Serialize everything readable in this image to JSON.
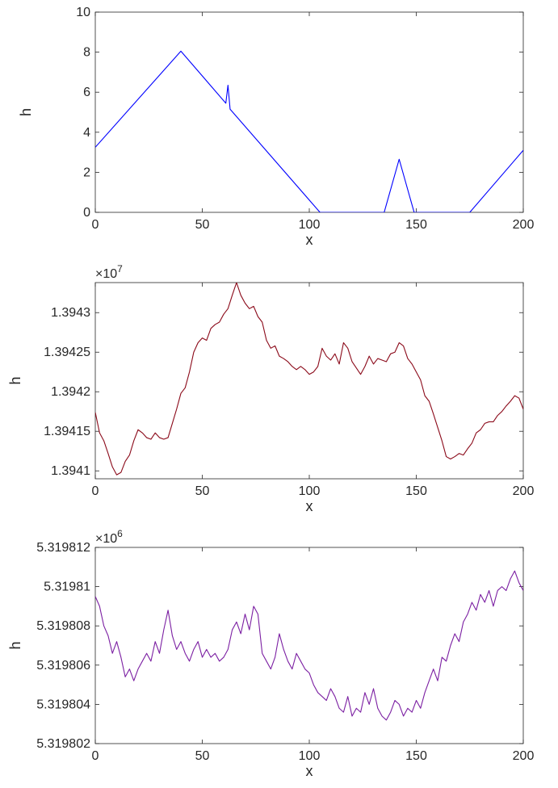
{
  "chart_data": [
    {
      "type": "line",
      "xlabel": "x",
      "ylabel": "h",
      "exponent": "",
      "color": "#0000ff",
      "xlim": [
        0,
        200
      ],
      "ylim": [
        0,
        10
      ],
      "xticks": [
        0,
        50,
        100,
        150,
        200
      ],
      "xtick_labels": [
        "0",
        "50",
        "100",
        "150",
        "200"
      ],
      "yticks": [
        0,
        2,
        4,
        6,
        8,
        10
      ],
      "ytick_labels": [
        "0",
        "2",
        "4",
        "6",
        "8",
        "10"
      ],
      "x": [
        0,
        40,
        61,
        62,
        63,
        105,
        135,
        142,
        149,
        175,
        200
      ],
      "y": [
        3.25,
        8.05,
        5.45,
        6.35,
        5.15,
        0,
        0,
        2.65,
        0,
        0,
        3.1
      ]
    },
    {
      "type": "line",
      "xlabel": "x",
      "ylabel": "h",
      "exponent": "7",
      "color": "#8b0a1a",
      "xlim": [
        0,
        200
      ],
      "ylim": [
        1.39409,
        1.394338
      ],
      "xticks": [
        0,
        50,
        100,
        150,
        200
      ],
      "xtick_labels": [
        "0",
        "50",
        "100",
        "150",
        "200"
      ],
      "yticks": [
        1.3941,
        1.39415,
        1.3942,
        1.39425,
        1.3943
      ],
      "ytick_labels": [
        "1.3941",
        "1.39415",
        "1.3942",
        "1.39425",
        "1.3943"
      ],
      "x": [
        0,
        2,
        4,
        6,
        8,
        10,
        12,
        14,
        16,
        18,
        20,
        22,
        24,
        26,
        28,
        30,
        32,
        34,
        36,
        38,
        40,
        42,
        44,
        46,
        48,
        50,
        52,
        54,
        56,
        58,
        60,
        62,
        64,
        66,
        68,
        70,
        72,
        74,
        76,
        78,
        80,
        82,
        84,
        86,
        88,
        90,
        92,
        94,
        96,
        98,
        100,
        102,
        104,
        106,
        108,
        110,
        112,
        114,
        116,
        118,
        120,
        122,
        124,
        126,
        128,
        130,
        132,
        134,
        136,
        138,
        140,
        142,
        144,
        146,
        148,
        150,
        152,
        154,
        156,
        158,
        160,
        162,
        164,
        166,
        168,
        170,
        172,
        174,
        176,
        178,
        180,
        182,
        184,
        186,
        188,
        190,
        192,
        194,
        196,
        198,
        200
      ],
      "y": [
        1.394174,
        1.394148,
        1.394138,
        1.394122,
        1.394105,
        1.394095,
        1.394098,
        1.394112,
        1.39412,
        1.394138,
        1.394152,
        1.394148,
        1.394142,
        1.39414,
        1.394148,
        1.394142,
        1.39414,
        1.394142,
        1.39416,
        1.394178,
        1.394198,
        1.394205,
        1.394225,
        1.39425,
        1.394262,
        1.394268,
        1.394265,
        1.39428,
        1.394285,
        1.394288,
        1.394298,
        1.394305,
        1.394322,
        1.394338,
        1.394322,
        1.394312,
        1.394305,
        1.394308,
        1.394295,
        1.394288,
        1.394265,
        1.394255,
        1.394258,
        1.394245,
        1.394242,
        1.394238,
        1.394232,
        1.394228,
        1.394232,
        1.394228,
        1.394222,
        1.394225,
        1.394232,
        1.394255,
        1.394245,
        1.39424,
        1.394248,
        1.394235,
        1.394262,
        1.394255,
        1.394238,
        1.39423,
        1.394222,
        1.394232,
        1.394245,
        1.394235,
        1.394242,
        1.39424,
        1.394238,
        1.394248,
        1.39425,
        1.394262,
        1.394258,
        1.394242,
        1.394235,
        1.394225,
        1.394215,
        1.394195,
        1.394188,
        1.394172,
        1.394155,
        1.394138,
        1.394118,
        1.394115,
        1.394118,
        1.394122,
        1.39412,
        1.394128,
        1.394135,
        1.394148,
        1.394152,
        1.39416,
        1.394162,
        1.394162,
        1.39417,
        1.394175,
        1.394182,
        1.394188,
        1.394195,
        1.394192,
        1.394178
      ]
    },
    {
      "type": "line",
      "xlabel": "x",
      "ylabel": "h",
      "exponent": "6",
      "color": "#7b1fa2",
      "xlim": [
        0,
        200
      ],
      "ylim": [
        5.319802,
        5.319812
      ],
      "xticks": [
        0,
        50,
        100,
        150,
        200
      ],
      "xtick_labels": [
        "0",
        "50",
        "100",
        "150",
        "200"
      ],
      "yticks": [
        5.319802,
        5.319804,
        5.319806,
        5.319808,
        5.31981,
        5.319812
      ],
      "ytick_labels": [
        "5.319802",
        "5.319804",
        "5.319806",
        "5.319808",
        "5.31981",
        "5.319812"
      ],
      "x": [
        0,
        2,
        4,
        6,
        8,
        10,
        12,
        14,
        16,
        18,
        20,
        22,
        24,
        26,
        28,
        30,
        32,
        34,
        36,
        38,
        40,
        42,
        44,
        46,
        48,
        50,
        52,
        54,
        56,
        58,
        60,
        62,
        64,
        66,
        68,
        70,
        72,
        74,
        76,
        78,
        80,
        82,
        84,
        86,
        88,
        90,
        92,
        94,
        96,
        98,
        100,
        102,
        104,
        106,
        108,
        110,
        112,
        114,
        116,
        118,
        120,
        122,
        124,
        126,
        128,
        130,
        132,
        134,
        136,
        138,
        140,
        142,
        144,
        146,
        148,
        150,
        152,
        154,
        156,
        158,
        160,
        162,
        164,
        166,
        168,
        170,
        172,
        174,
        176,
        178,
        180,
        182,
        184,
        186,
        188,
        190,
        192,
        194,
        196,
        198,
        200
      ],
      "y": [
        5.3198095,
        5.319809,
        5.319808,
        5.3198075,
        5.3198066,
        5.3198072,
        5.3198064,
        5.3198054,
        5.3198058,
        5.3198052,
        5.3198058,
        5.3198062,
        5.3198066,
        5.3198062,
        5.3198072,
        5.3198066,
        5.3198078,
        5.3198088,
        5.3198075,
        5.3198068,
        5.3198072,
        5.3198066,
        5.3198062,
        5.3198068,
        5.3198072,
        5.3198064,
        5.3198068,
        5.3198064,
        5.3198066,
        5.3198062,
        5.3198064,
        5.3198068,
        5.3198078,
        5.3198082,
        5.3198076,
        5.3198086,
        5.3198078,
        5.319809,
        5.3198086,
        5.3198066,
        5.3198062,
        5.3198058,
        5.3198064,
        5.3198076,
        5.3198068,
        5.3198062,
        5.3198058,
        5.3198066,
        5.3198062,
        5.3198058,
        5.3198056,
        5.319805,
        5.3198046,
        5.3198044,
        5.3198042,
        5.3198048,
        5.3198044,
        5.3198038,
        5.3198036,
        5.3198044,
        5.3198034,
        5.3198038,
        5.3198036,
        5.3198046,
        5.319804,
        5.3198048,
        5.3198038,
        5.3198034,
        5.3198032,
        5.3198036,
        5.3198042,
        5.319804,
        5.3198034,
        5.3198038,
        5.3198036,
        5.3198042,
        5.3198038,
        5.3198046,
        5.3198052,
        5.3198058,
        5.3198052,
        5.3198064,
        5.3198062,
        5.319807,
        5.3198076,
        5.3198072,
        5.3198082,
        5.3198086,
        5.3198092,
        5.3198088,
        5.3198096,
        5.3198092,
        5.3198098,
        5.319809,
        5.3198098,
        5.31981,
        5.3198098,
        5.3198104,
        5.3198108,
        5.3198102,
        5.3198098
      ]
    }
  ]
}
